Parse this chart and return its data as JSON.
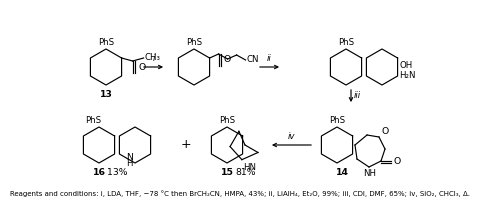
{
  "caption": "Reagents and conditions: i, LDA, THF, −78 °C then BrCH₂CN, HMPA, 43%; ii, LiAlH₄, Et₂O, 99%; iii, CDI, DMF, 65%; iv, SiO₂, CHCl₃, Δ.",
  "bg": "#ffffff",
  "lw": 0.85,
  "fs": 6.2
}
